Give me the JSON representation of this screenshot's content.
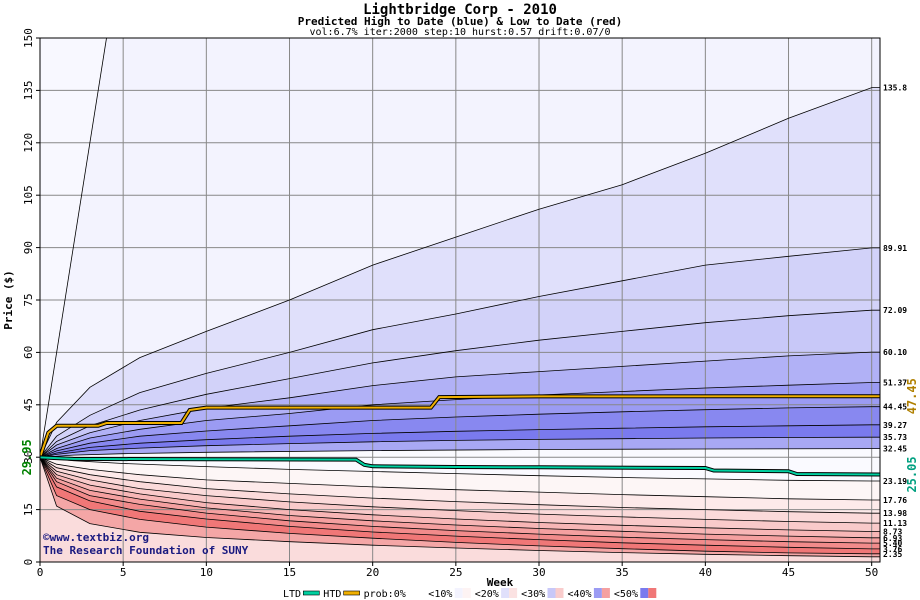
{
  "chart_data": {
    "type": "area",
    "title": "Lightbridge Corp - 2010",
    "subtitle": "Predicted High to Date (blue) &  Low to Date (red)",
    "params": "vol:6.7% iter:2000 step:10 hurst:0.57 drift:0.07/0",
    "xlabel": "Week",
    "ylabel": "Price ($)",
    "xlim": [
      0,
      50.5
    ],
    "ylim": [
      0,
      150
    ],
    "xticks": [
      0,
      5,
      10,
      15,
      20,
      25,
      30,
      35,
      40,
      45,
      50
    ],
    "yticks": [
      0,
      15,
      30,
      45,
      60,
      75,
      90,
      105,
      120,
      135,
      150
    ],
    "start_price_label": "29.95",
    "start_price": 29.95,
    "htd_final_label": "47.45",
    "ltd_final_label": "25.05",
    "watermark": [
      "©www.textbiz.org",
      "The Research Foundation of SUNY"
    ],
    "colors": {
      "blue_bands": [
        "#f3f3fe",
        "#e0e0fb",
        "#c8c8f8",
        "#b1b1f6",
        "#9b9bf3",
        "#8888f0",
        "#7a7aee"
      ],
      "red_bands": [
        "#fdf3f3",
        "#fbe2e2",
        "#f9cccc",
        "#f7b6b6",
        "#f5a0a0",
        "#f28b8b",
        "#f07777"
      ],
      "htd": "#f0b000",
      "ltd": "#00d0a0"
    },
    "upper_curves": [
      {
        "label": "",
        "points": [
          [
            0,
            29.95
          ],
          [
            4,
            150
          ]
        ]
      },
      {
        "label": "135.8",
        "points": [
          [
            0,
            29.95
          ],
          [
            1,
            40
          ],
          [
            3,
            50
          ],
          [
            6,
            58.5
          ],
          [
            10,
            66
          ],
          [
            15,
            75
          ],
          [
            20,
            85
          ],
          [
            25,
            93
          ],
          [
            30,
            101
          ],
          [
            35,
            108
          ],
          [
            40,
            117
          ],
          [
            45,
            127
          ],
          [
            50,
            135.8
          ]
        ]
      },
      {
        "label": "89.91",
        "points": [
          [
            0,
            29.95
          ],
          [
            1,
            36
          ],
          [
            3,
            42
          ],
          [
            6,
            48.5
          ],
          [
            10,
            54
          ],
          [
            15,
            60
          ],
          [
            20,
            66.5
          ],
          [
            25,
            71
          ],
          [
            30,
            76
          ],
          [
            35,
            80.5
          ],
          [
            40,
            85
          ],
          [
            45,
            87.5
          ],
          [
            50,
            89.91
          ]
        ]
      },
      {
        "label": "72.09",
        "points": [
          [
            0,
            29.95
          ],
          [
            1,
            34.5
          ],
          [
            3,
            39
          ],
          [
            6,
            43.5
          ],
          [
            10,
            48
          ],
          [
            15,
            52.5
          ],
          [
            20,
            57
          ],
          [
            25,
            60.5
          ],
          [
            30,
            63.5
          ],
          [
            35,
            66
          ],
          [
            40,
            68.5
          ],
          [
            45,
            70.5
          ],
          [
            50,
            72.09
          ]
        ]
      },
      {
        "label": "60.10",
        "points": [
          [
            0,
            29.95
          ],
          [
            1,
            33.5
          ],
          [
            3,
            37
          ],
          [
            6,
            40.5
          ],
          [
            10,
            44
          ],
          [
            15,
            47
          ],
          [
            20,
            50.5
          ],
          [
            25,
            53
          ],
          [
            30,
            54.5
          ],
          [
            35,
            56
          ],
          [
            40,
            57.5
          ],
          [
            45,
            59
          ],
          [
            50,
            60.1
          ]
        ]
      },
      {
        "label": "51.37",
        "points": [
          [
            0,
            29.95
          ],
          [
            1,
            32.5
          ],
          [
            3,
            35.5
          ],
          [
            6,
            38
          ],
          [
            10,
            40.5
          ],
          [
            15,
            42.5
          ],
          [
            20,
            45
          ],
          [
            25,
            46.5
          ],
          [
            30,
            47.8
          ],
          [
            35,
            48.8
          ],
          [
            40,
            49.8
          ],
          [
            45,
            50.6
          ],
          [
            50,
            51.37
          ]
        ]
      },
      {
        "label": "44.45",
        "points": [
          [
            0,
            29.95
          ],
          [
            1,
            31.8
          ],
          [
            3,
            34
          ],
          [
            6,
            36
          ],
          [
            10,
            37.5
          ],
          [
            15,
            39
          ],
          [
            20,
            40.5
          ],
          [
            25,
            41.5
          ],
          [
            30,
            42.3
          ],
          [
            35,
            43
          ],
          [
            40,
            43.6
          ],
          [
            45,
            44.1
          ],
          [
            50,
            44.45
          ]
        ]
      },
      {
        "label": "39.27",
        "points": [
          [
            0,
            29.95
          ],
          [
            1,
            31.2
          ],
          [
            3,
            32.8
          ],
          [
            6,
            34
          ],
          [
            10,
            35
          ],
          [
            15,
            36
          ],
          [
            20,
            36.8
          ],
          [
            25,
            37.4
          ],
          [
            30,
            37.9
          ],
          [
            35,
            38.3
          ],
          [
            40,
            38.7
          ],
          [
            45,
            39
          ],
          [
            50,
            39.27
          ]
        ]
      },
      {
        "label": "35.73",
        "points": [
          [
            0,
            29.95
          ],
          [
            1,
            30.8
          ],
          [
            3,
            31.9
          ],
          [
            6,
            32.6
          ],
          [
            10,
            33.3
          ],
          [
            15,
            33.9
          ],
          [
            20,
            34.4
          ],
          [
            25,
            34.8
          ],
          [
            30,
            35.1
          ],
          [
            35,
            35.3
          ],
          [
            40,
            35.5
          ],
          [
            45,
            35.65
          ],
          [
            50,
            35.73
          ]
        ]
      },
      {
        "label": "32.45",
        "points": [
          [
            0,
            29.95
          ],
          [
            2,
            30.6
          ],
          [
            5,
            31
          ],
          [
            10,
            31.4
          ],
          [
            20,
            31.9
          ],
          [
            30,
            32.2
          ],
          [
            40,
            32.35
          ],
          [
            50,
            32.45
          ]
        ]
      }
    ],
    "lower_curves": [
      {
        "label": "23.19",
        "points": [
          [
            0,
            29.95
          ],
          [
            2,
            29
          ],
          [
            5,
            28.2
          ],
          [
            10,
            27.3
          ],
          [
            15,
            26.5
          ],
          [
            20,
            25.9
          ],
          [
            25,
            25.3
          ],
          [
            30,
            24.7
          ],
          [
            35,
            24.2
          ],
          [
            40,
            23.8
          ],
          [
            45,
            23.4
          ],
          [
            50,
            23.19
          ]
        ]
      },
      {
        "label": "17.76",
        "points": [
          [
            0,
            29.95
          ],
          [
            1,
            28
          ],
          [
            3,
            26.5
          ],
          [
            6,
            25
          ],
          [
            10,
            23.5
          ],
          [
            15,
            22.5
          ],
          [
            20,
            21.5
          ],
          [
            25,
            20.7
          ],
          [
            30,
            20
          ],
          [
            35,
            19.3
          ],
          [
            40,
            18.7
          ],
          [
            45,
            18.1
          ],
          [
            50,
            17.76
          ]
        ]
      },
      {
        "label": "13.98",
        "points": [
          [
            0,
            29.95
          ],
          [
            1,
            27
          ],
          [
            3,
            25
          ],
          [
            6,
            23
          ],
          [
            10,
            21
          ],
          [
            15,
            19.5
          ],
          [
            20,
            18.3
          ],
          [
            25,
            17.3
          ],
          [
            30,
            16.4
          ],
          [
            35,
            15.6
          ],
          [
            40,
            15
          ],
          [
            45,
            14.4
          ],
          [
            50,
            13.98
          ]
        ]
      },
      {
        "label": "11.13",
        "points": [
          [
            0,
            29.95
          ],
          [
            1,
            26
          ],
          [
            3,
            23.5
          ],
          [
            6,
            21
          ],
          [
            10,
            19
          ],
          [
            15,
            17.2
          ],
          [
            20,
            15.8
          ],
          [
            25,
            14.7
          ],
          [
            30,
            13.7
          ],
          [
            35,
            12.9
          ],
          [
            40,
            12.2
          ],
          [
            45,
            11.6
          ],
          [
            50,
            11.13
          ]
        ]
      },
      {
        "label": "8.73",
        "points": [
          [
            0,
            29.95
          ],
          [
            1,
            25
          ],
          [
            3,
            22
          ],
          [
            6,
            19.5
          ],
          [
            10,
            17
          ],
          [
            15,
            15
          ],
          [
            20,
            13.5
          ],
          [
            25,
            12.3
          ],
          [
            30,
            11.3
          ],
          [
            35,
            10.5
          ],
          [
            40,
            9.8
          ],
          [
            45,
            9.2
          ],
          [
            50,
            8.73
          ]
        ]
      },
      {
        "label": "6.93",
        "points": [
          [
            0,
            29.95
          ],
          [
            1,
            24
          ],
          [
            3,
            20.5
          ],
          [
            6,
            18
          ],
          [
            10,
            15.5
          ],
          [
            15,
            13.3
          ],
          [
            20,
            11.8
          ],
          [
            25,
            10.6
          ],
          [
            30,
            9.6
          ],
          [
            35,
            8.8
          ],
          [
            40,
            8
          ],
          [
            45,
            7.4
          ],
          [
            50,
            6.93
          ]
        ]
      },
      {
        "label": "5.40",
        "points": [
          [
            0,
            29.95
          ],
          [
            1,
            23
          ],
          [
            3,
            19
          ],
          [
            6,
            16.5
          ],
          [
            10,
            14
          ],
          [
            15,
            11.8
          ],
          [
            20,
            10.2
          ],
          [
            25,
            9
          ],
          [
            30,
            8
          ],
          [
            35,
            7.1
          ],
          [
            40,
            6.4
          ],
          [
            45,
            5.8
          ],
          [
            50,
            5.4
          ]
        ]
      },
      {
        "label": "3.76",
        "points": [
          [
            0,
            29.95
          ],
          [
            1,
            21.5
          ],
          [
            3,
            17.5
          ],
          [
            6,
            14.5
          ],
          [
            10,
            12.3
          ],
          [
            15,
            10.2
          ],
          [
            20,
            8.6
          ],
          [
            25,
            7.4
          ],
          [
            30,
            6.4
          ],
          [
            35,
            5.5
          ],
          [
            40,
            4.8
          ],
          [
            45,
            4.2
          ],
          [
            50,
            3.76
          ]
        ]
      },
      {
        "label": "2.35",
        "points": [
          [
            0,
            29.95
          ],
          [
            1,
            19
          ],
          [
            3,
            15
          ],
          [
            6,
            12.2
          ],
          [
            10,
            10
          ],
          [
            15,
            8.2
          ],
          [
            20,
            6.8
          ],
          [
            25,
            5.6
          ],
          [
            30,
            4.6
          ],
          [
            35,
            3.8
          ],
          [
            40,
            3.1
          ],
          [
            45,
            2.6
          ],
          [
            50,
            2.35
          ]
        ]
      },
      {
        "label": "",
        "points": [
          [
            0,
            29.95
          ],
          [
            1,
            16
          ],
          [
            3,
            11
          ],
          [
            6,
            8.5
          ],
          [
            10,
            7
          ],
          [
            15,
            5.8
          ],
          [
            20,
            4.8
          ],
          [
            25,
            4
          ],
          [
            30,
            3.3
          ],
          [
            35,
            2.7
          ],
          [
            40,
            2.2
          ],
          [
            45,
            1.8
          ],
          [
            50,
            1.5
          ]
        ]
      }
    ],
    "htd_series": {
      "name": "HTD",
      "points": [
        [
          0,
          29.95
        ],
        [
          0.5,
          37
        ],
        [
          1,
          39
        ],
        [
          3.5,
          39
        ],
        [
          4,
          39.8
        ],
        [
          8.5,
          39.8
        ],
        [
          9,
          43.5
        ],
        [
          10,
          44.2
        ],
        [
          23.5,
          44.2
        ],
        [
          24,
          47.2
        ],
        [
          30,
          47.4
        ],
        [
          50.5,
          47.45
        ]
      ]
    },
    "ltd_series": {
      "name": "LTD",
      "points": [
        [
          0,
          29.95
        ],
        [
          2,
          29.5
        ],
        [
          10,
          29.4
        ],
        [
          19,
          29.3
        ],
        [
          19.5,
          27.8
        ],
        [
          20,
          27.4
        ],
        [
          25,
          27.2
        ],
        [
          30,
          27.1
        ],
        [
          40,
          26.9
        ],
        [
          40.5,
          26.2
        ],
        [
          45,
          26
        ],
        [
          45.5,
          25.2
        ],
        [
          50.5,
          25.05
        ]
      ]
    },
    "legend": {
      "placement": "bottom",
      "items": [
        {
          "text": "LTD",
          "color": "#00d0a0",
          "kind": "line"
        },
        {
          "text": "HTD",
          "color": "#f0b000",
          "kind": "line"
        },
        {
          "text": "prob:0%",
          "color": "#ffffff",
          "kind": "box"
        },
        {
          "text": "<10%",
          "color": "#f3f3fe",
          "color2": "#fdf3f3",
          "kind": "box"
        },
        {
          "text": "<20%",
          "color": "#e0e0fb",
          "color2": "#fbe2e2",
          "kind": "box"
        },
        {
          "text": "<30%",
          "color": "#c8c8f8",
          "color2": "#f9cccc",
          "kind": "box"
        },
        {
          "text": "<40%",
          "color": "#9b9bf3",
          "color2": "#f5a0a0",
          "kind": "box"
        },
        {
          "text": "<50%",
          "color": "#7a7aee",
          "color2": "#f07777",
          "kind": "box"
        }
      ]
    }
  }
}
